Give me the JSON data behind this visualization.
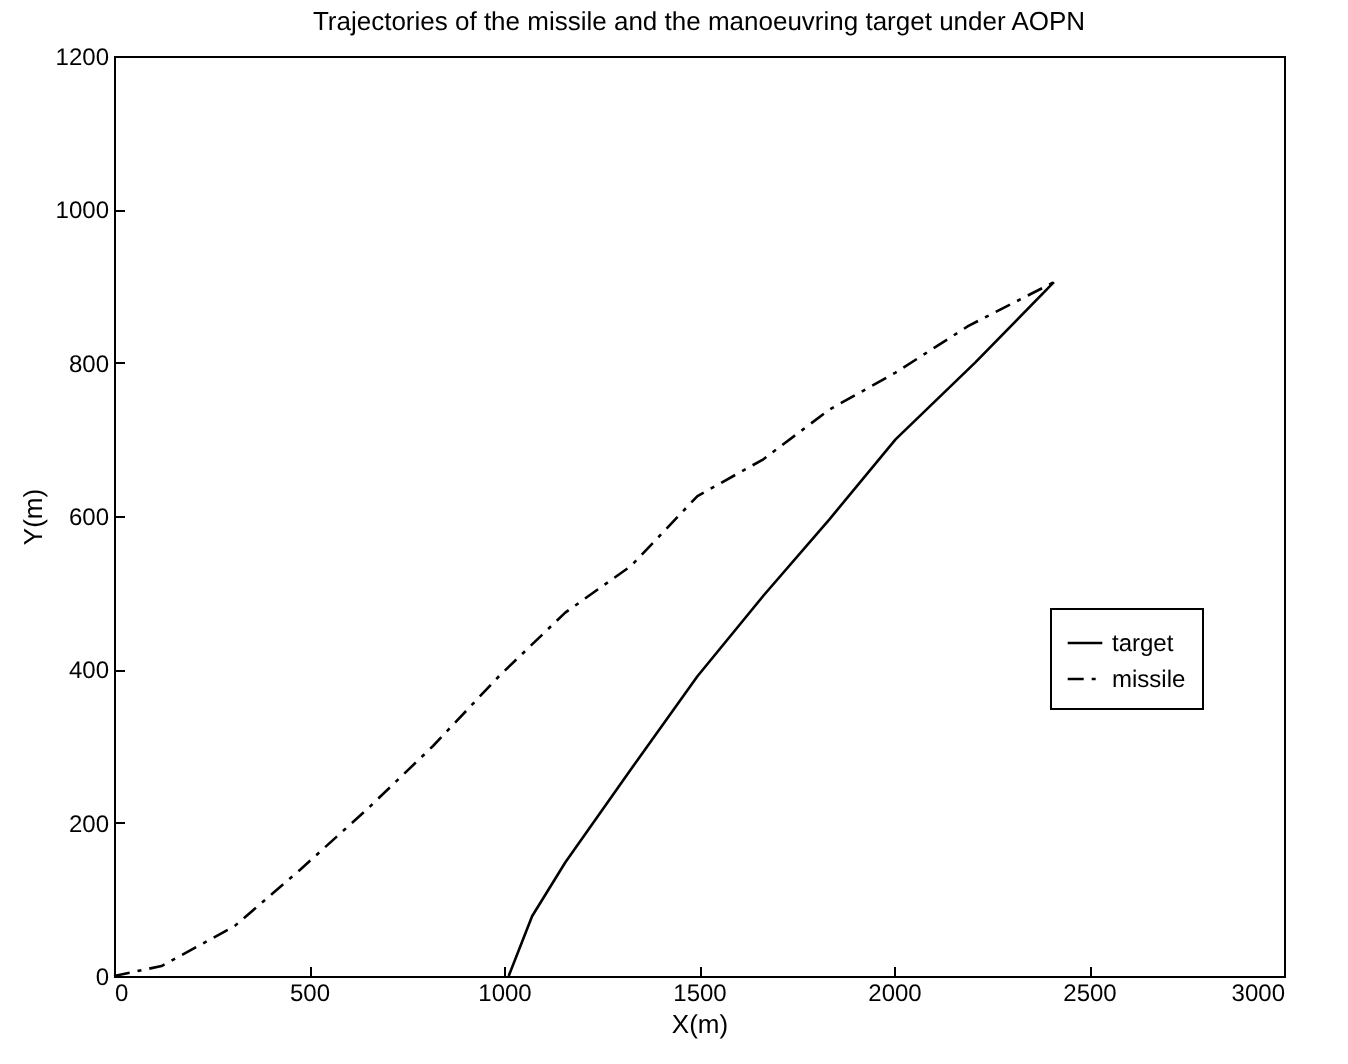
{
  "chart_data": {
    "type": "line",
    "title": "Trajectories of the missile and the manoeuvring target under AOPN",
    "xlabel": "X(m)",
    "ylabel": "Y(m)",
    "xlim": [
      0,
      3000
    ],
    "xticks": [
      0,
      500,
      1000,
      1500,
      2000,
      2500,
      3000
    ],
    "ylim": [
      0,
      1200
    ],
    "yticks": [
      0,
      200,
      400,
      600,
      800,
      1000,
      1200
    ],
    "legend": "right",
    "grid": false,
    "series": [
      {
        "name": "target",
        "color": "#000000",
        "line_style": "solid",
        "x": [
          1012,
          1072,
          1157,
          1326,
          1496,
          1665,
          1835,
          2004,
          2208,
          2410
        ],
        "values": [
          0,
          78,
          148,
          270,
          391,
          496,
          596,
          700,
          800,
          905
        ]
      },
      {
        "name": "missile",
        "color": "#000000",
        "line_style": "dashed",
        "x": [
          0,
          122,
          309,
          478,
          648,
          818,
          987,
          1157,
          1326,
          1496,
          1665,
          1835,
          2004,
          2191,
          2410
        ],
        "values": [
          0,
          13,
          65,
          139,
          217,
          300,
          391,
          474,
          535,
          626,
          674,
          739,
          787,
          848,
          905
        ]
      }
    ]
  }
}
